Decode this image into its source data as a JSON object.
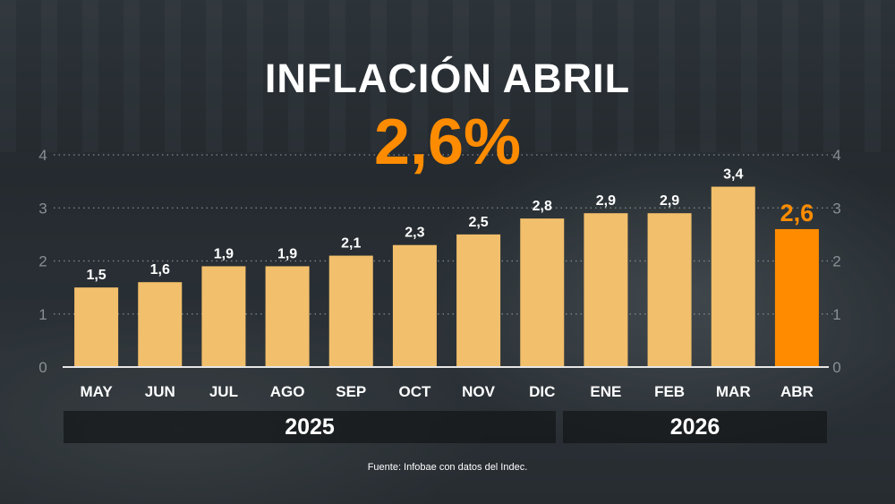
{
  "header": {
    "title": "INFLACIÓN ABRIL",
    "headline_value": "2,6%"
  },
  "years": [
    {
      "label": "2025"
    },
    {
      "label": "2026"
    }
  ],
  "source": "Fuente: Infobae con datos del Indec.",
  "colors": {
    "bar": "#f2bf6c",
    "highlight": "#ff8c00",
    "axis": "#9aa0a4",
    "text": "#ffffff"
  },
  "chart_data": {
    "type": "bar",
    "categories": [
      "MAY",
      "JUN",
      "JUL",
      "AGO",
      "SEP",
      "OCT",
      "NOV",
      "DIC",
      "ENE",
      "FEB",
      "MAR",
      "ABR"
    ],
    "values": [
      1.5,
      1.6,
      1.9,
      1.9,
      2.1,
      2.3,
      2.5,
      2.8,
      2.9,
      2.9,
      3.4,
      2.6
    ],
    "value_labels": [
      "1,5",
      "1,6",
      "1,9",
      "1,9",
      "2,1",
      "2,3",
      "2,5",
      "2,8",
      "2,9",
      "2,9",
      "3,4",
      "2,6"
    ],
    "highlight_index": 11,
    "ylim": [
      0,
      4
    ],
    "yticks": [
      "0",
      "1",
      "2",
      "3",
      "4"
    ],
    "grid": true,
    "title": "INFLACIÓN ABRIL",
    "xlabel": "",
    "ylabel": ""
  }
}
